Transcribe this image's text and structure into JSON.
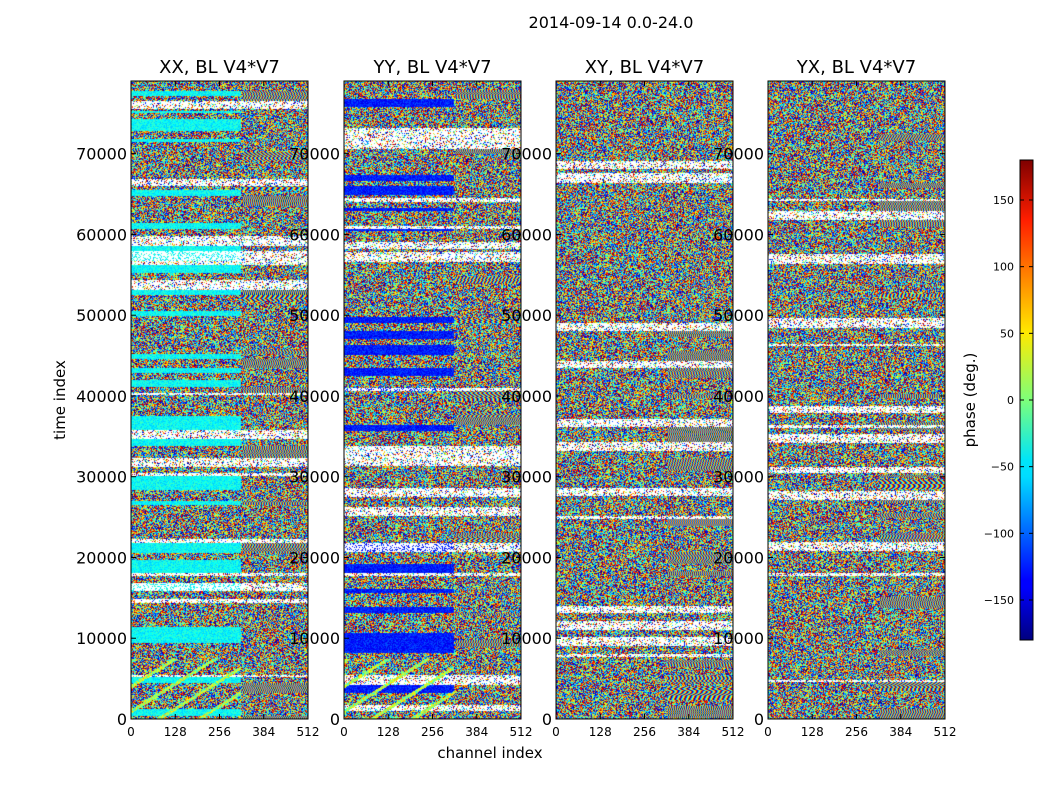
{
  "figure": {
    "suptitle": "2014-09-14 0.0-24.0",
    "xlabel": "channel index",
    "ylabel": "time index"
  },
  "chart_data": {
    "type": "heatmap",
    "xlim": [
      0,
      512
    ],
    "ylim": [
      0,
      79000
    ],
    "xticks": [
      0,
      128,
      256,
      384,
      512
    ],
    "yticks": [
      0,
      10000,
      20000,
      30000,
      40000,
      50000,
      60000,
      70000
    ],
    "panels": [
      {
        "title": "XX, BL V4*V7",
        "pol": "XX"
      },
      {
        "title": "YY, BL V4*V7",
        "pol": "YY"
      },
      {
        "title": "XY, BL V4*V7",
        "pol": "XY"
      },
      {
        "title": "YX, BL V4*V7",
        "pol": "YX"
      }
    ],
    "colorbar": {
      "label": "phase (deg.)",
      "range": [
        -180,
        180
      ],
      "ticks": [
        -150,
        -100,
        -50,
        0,
        50,
        100,
        150
      ],
      "colormap": "jet"
    }
  }
}
